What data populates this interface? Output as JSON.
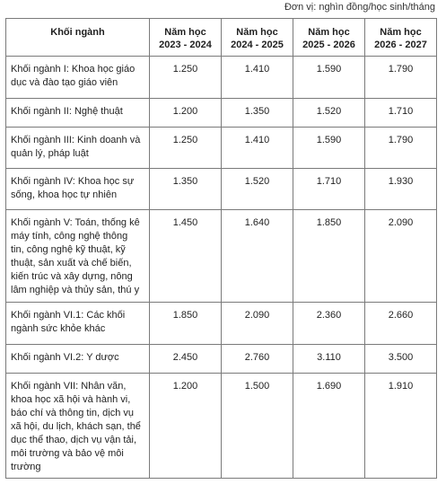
{
  "unit_note": "Đơn vị: nghìn đồng/học sinh/tháng",
  "header": {
    "name": "Khối ngành",
    "years": [
      [
        "Năm học",
        "2023 - 2024"
      ],
      [
        "Năm học",
        "2024 - 2025"
      ],
      [
        "Năm học",
        "2025 - 2026"
      ],
      [
        "Năm học",
        "2026 - 2027"
      ]
    ]
  },
  "rows": [
    {
      "name_lines": [
        "Khối ngành I: Khoa học giáo",
        "dục và đào tạo giáo viên"
      ],
      "values": [
        "1.250",
        "1.410",
        "1.590",
        "1.790"
      ]
    },
    {
      "name_lines": [
        "Khối ngành II: Nghệ thuật"
      ],
      "values": [
        "1.200",
        "1.350",
        "1.520",
        "1.710"
      ]
    },
    {
      "name_lines": [
        "Khối ngành III: Kinh doanh và",
        "quản lý, pháp luật"
      ],
      "values": [
        "1.250",
        "1.410",
        "1.590",
        "1.790"
      ]
    },
    {
      "name_lines": [
        "Khối ngành IV: Khoa học sự",
        "sống, khoa học tự nhiên"
      ],
      "values": [
        "1.350",
        "1.520",
        "1.710",
        "1.930"
      ]
    },
    {
      "name_lines": [
        "Khối ngành V: Toán, thống kê",
        "máy tính, công nghệ thông",
        "tin, công nghệ kỹ thuật, kỹ",
        "thuật, sản xuất và chế biến,",
        "kiến trúc và xây dựng, nông",
        "lâm nghiệp và thủy sản, thú y"
      ],
      "values": [
        "1.450",
        "1.640",
        "1.850",
        "2.090"
      ]
    },
    {
      "name_lines": [
        "Khối ngành VI.1: Các khối",
        "ngành sức khỏe khác"
      ],
      "values": [
        "1.850",
        "2.090",
        "2.360",
        "2.660"
      ]
    },
    {
      "name_lines": [
        "Khối ngành VI.2: Y dược"
      ],
      "values": [
        "2.450",
        "2.760",
        "3.110",
        "3.500"
      ]
    },
    {
      "name_lines": [
        "Khối ngành VII: Nhân văn,",
        "khoa học xã hội và hành vi,",
        "báo chí và thông tin, dịch vụ",
        "xã hội, du lịch, khách sạn, thể",
        "dục thể thao, dịch vụ vận tải,",
        "môi trường và bảo vệ môi",
        "trường"
      ],
      "values": [
        "1.200",
        "1.500",
        "1.690",
        "1.910"
      ]
    }
  ]
}
